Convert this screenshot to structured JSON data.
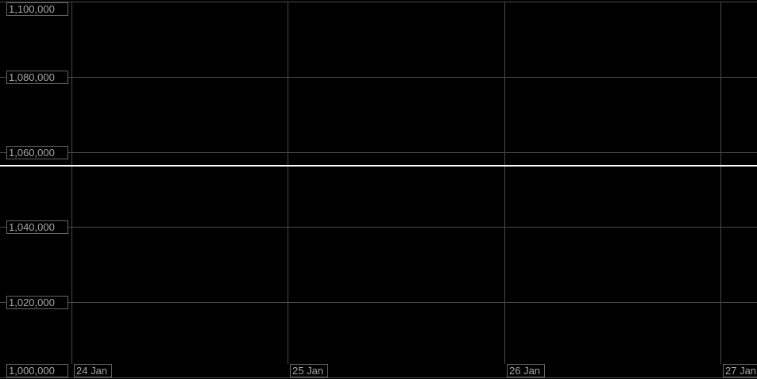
{
  "chart_data": {
    "type": "line",
    "title": "",
    "xlabel": "",
    "ylabel": "",
    "x_ticks": [
      "24 Jan",
      "25 Jan",
      "26 Jan",
      "27 Jan"
    ],
    "y_ticks": [
      {
        "label": "1,100,000",
        "value": 1100000
      },
      {
        "label": "1,080,000",
        "value": 1080000
      },
      {
        "label": "1,060,000",
        "value": 1060000
      },
      {
        "label": "1,040,000",
        "value": 1040000
      },
      {
        "label": "1,020,000",
        "value": 1020000
      },
      {
        "label": "1,000,000",
        "value": 1000000
      }
    ],
    "ylim": [
      1000000,
      1100000
    ],
    "series": [
      {
        "name": "",
        "shape": "flat-horizontal-line",
        "value": 1056400,
        "values": [
          1056400,
          1056400,
          1056400,
          1056400
        ],
        "color": "#ffffff",
        "line_width": 2
      }
    ],
    "grid": true,
    "legend_position": "none",
    "background_color": "#000000",
    "grid_color": "#4a4a4a",
    "axis_label_text_color": "#a6a6a6",
    "axis_label_border_color": "#666666"
  }
}
